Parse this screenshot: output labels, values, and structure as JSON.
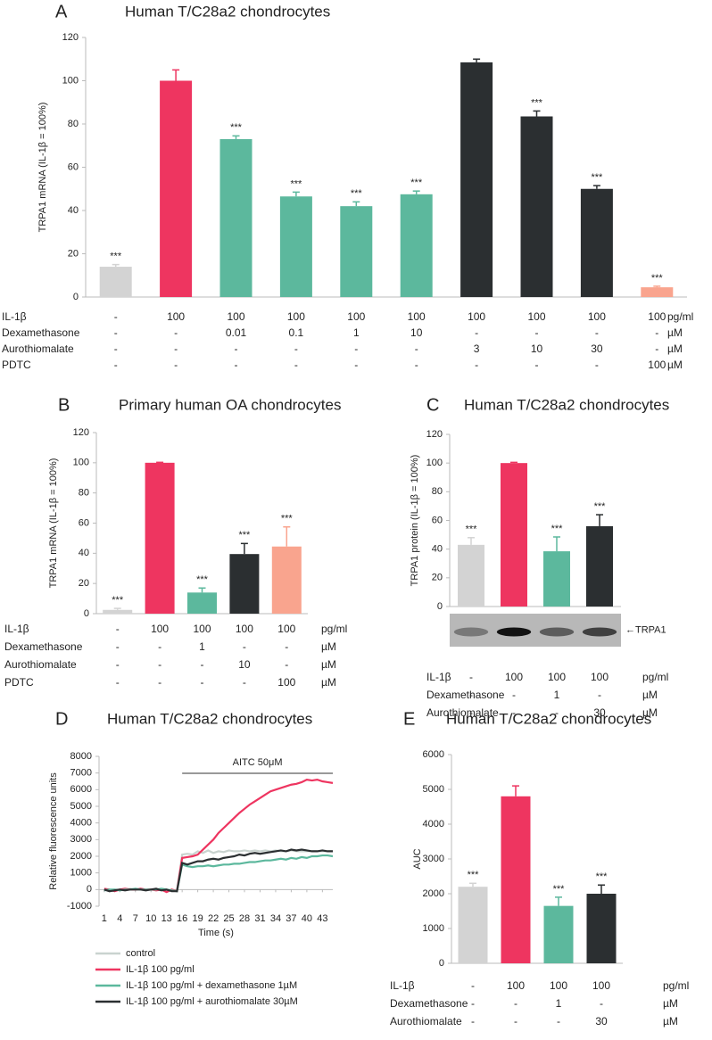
{
  "chart_data": [
    {
      "type": "bar",
      "panel": "A",
      "title": "Human T/C28a2 chondrocytes",
      "ylabel": "TRPA1 mRNA (IL-1β = 100%)",
      "ylim": [
        0,
        120
      ],
      "yticks": [
        0,
        20,
        40,
        60,
        80,
        100,
        120
      ],
      "values": [
        14,
        100,
        73,
        46.5,
        42,
        47.5,
        108.5,
        83.5,
        50,
        4.5
      ],
      "errors": [
        1,
        5,
        1.5,
        2,
        2,
        1.5,
        1.5,
        2.5,
        1.5,
        0.5
      ],
      "colors": [
        "#d3d3d3",
        "#ee3560",
        "#5cb89d",
        "#5cb89d",
        "#5cb89d",
        "#5cb89d",
        "#2b2f31",
        "#2b2f31",
        "#2b2f31",
        "#f9a48e"
      ],
      "significance": [
        "***",
        null,
        "***",
        "***",
        "***",
        "***",
        null,
        "***",
        "***",
        "***"
      ],
      "conditions": [
        {
          "label": "IL-1β",
          "values": [
            "-",
            "100",
            "100",
            "100",
            "100",
            "100",
            "100",
            "100",
            "100",
            "100"
          ],
          "unit": "pg/ml"
        },
        {
          "label": "Dexamethasone",
          "values": [
            "-",
            "-",
            "0.01",
            "0.1",
            "1",
            "10",
            "-",
            "-",
            "-",
            "-"
          ],
          "unit": "µM"
        },
        {
          "label": "Aurothiomalate",
          "values": [
            "-",
            "-",
            "-",
            "-",
            "-",
            "-",
            "3",
            "10",
            "30",
            "-"
          ],
          "unit": "µM"
        },
        {
          "label": "PDTC",
          "values": [
            "-",
            "-",
            "-",
            "-",
            "-",
            "-",
            "-",
            "-",
            "-",
            "100"
          ],
          "unit": "µM"
        }
      ]
    },
    {
      "type": "bar",
      "panel": "B",
      "title": "Primary human OA chondrocytes",
      "ylabel": "TRPA1 mRNA (IL-1β = 100%)",
      "ylim": [
        0,
        120
      ],
      "yticks": [
        0,
        20,
        40,
        60,
        80,
        100,
        120
      ],
      "values": [
        2.5,
        100,
        14,
        39.5,
        44.5
      ],
      "errors": [
        1,
        0.3,
        3,
        7,
        13
      ],
      "colors": [
        "#d3d3d3",
        "#ee3560",
        "#5cb89d",
        "#2b2f31",
        "#f9a48e"
      ],
      "significance": [
        "***",
        null,
        "***",
        "***",
        "***"
      ],
      "conditions": [
        {
          "label": "IL-1β",
          "values": [
            "-",
            "100",
            "100",
            "100",
            "100"
          ],
          "unit": "pg/ml"
        },
        {
          "label": "Dexamethasone",
          "values": [
            "-",
            "-",
            "1",
            "-",
            "-"
          ],
          "unit": "µM"
        },
        {
          "label": "Aurothiomalate",
          "values": [
            "-",
            "-",
            "-",
            "10",
            "-"
          ],
          "unit": "µM"
        },
        {
          "label": "PDTC",
          "values": [
            "-",
            "-",
            "-",
            "-",
            "100"
          ],
          "unit": "µM"
        }
      ]
    },
    {
      "type": "bar",
      "panel": "C",
      "title": "Human T/C28a2 chondrocytes",
      "ylabel": "TRPA1 protein (IL-1β = 100%)",
      "ylim": [
        0,
        120
      ],
      "yticks": [
        0,
        20,
        40,
        60,
        80,
        100,
        120
      ],
      "values": [
        43,
        100,
        38.5,
        56
      ],
      "errors": [
        5,
        0.5,
        10,
        8
      ],
      "colors": [
        "#d3d3d3",
        "#ee3560",
        "#5cb89d",
        "#2b2f31"
      ],
      "significance": [
        "***",
        null,
        "***",
        "***"
      ],
      "blot_label": "←TRPA1",
      "conditions": [
        {
          "label": "IL-1β",
          "values": [
            "-",
            "100",
            "100",
            "100"
          ],
          "unit": "pg/ml"
        },
        {
          "label": "Dexamethasone",
          "values": [
            "-",
            "-",
            "1",
            "-"
          ],
          "unit": "µM"
        },
        {
          "label": "Aurothiomalate",
          "values": [
            "-",
            "-",
            "-",
            "30"
          ],
          "unit": "µM"
        }
      ]
    },
    {
      "type": "line",
      "panel": "D",
      "title": "Human T/C28a2 chondrocytes",
      "ylabel": "Relative fluorescence units",
      "xlabel": "Time (s)",
      "ylim": [
        -1000,
        8000
      ],
      "yticks": [
        -1000,
        0,
        1000,
        2000,
        3000,
        4000,
        5000,
        6000,
        7000,
        8000
      ],
      "xlim": [
        0,
        45
      ],
      "xticks": [
        1,
        4,
        7,
        10,
        13,
        16,
        19,
        22,
        25,
        28,
        31,
        34,
        37,
        40,
        43
      ],
      "annotation": {
        "text": "AITC 50μM",
        "x_start": 16,
        "x_end": 45
      },
      "x": [
        1,
        2,
        3,
        4,
        5,
        6,
        7,
        8,
        9,
        10,
        11,
        12,
        13,
        14,
        15,
        16,
        17,
        18,
        19,
        20,
        21,
        22,
        23,
        24,
        25,
        26,
        27,
        28,
        29,
        30,
        31,
        32,
        33,
        34,
        35,
        36,
        37,
        38,
        39,
        40,
        41,
        42,
        43,
        44,
        45
      ],
      "series": [
        {
          "name": "control",
          "color": "#c9d3cf",
          "values": [
            0,
            -50,
            0,
            0,
            0,
            50,
            0,
            0,
            -50,
            0,
            0,
            0,
            -100,
            0,
            -100,
            2100,
            2150,
            2100,
            2300,
            2200,
            2350,
            2200,
            2300,
            2250,
            2350,
            2300,
            2300,
            2350,
            2300,
            2350,
            2300,
            2350,
            2300,
            2350,
            2300,
            2300,
            2350,
            2300,
            2300,
            2300,
            2300,
            2300,
            2300,
            2300,
            2300
          ]
        },
        {
          "name": "IL-1β 100 pg/ml",
          "color": "#ee3560",
          "values": [
            50,
            0,
            -100,
            0,
            50,
            0,
            0,
            50,
            0,
            0,
            -50,
            0,
            -150,
            0,
            -100,
            1900,
            1950,
            2000,
            2100,
            2400,
            2700,
            3000,
            3400,
            3700,
            4000,
            4300,
            4600,
            4850,
            5100,
            5300,
            5500,
            5700,
            5900,
            6000,
            6100,
            6200,
            6300,
            6350,
            6450,
            6600,
            6550,
            6600,
            6500,
            6450,
            6400
          ]
        },
        {
          "name": "IL-1β 100 pg/ml + dexamethasone 1µM",
          "color": "#5cb89d",
          "values": [
            -50,
            0,
            0,
            -50,
            0,
            0,
            50,
            0,
            0,
            0,
            0,
            50,
            0,
            -50,
            -100,
            1500,
            1400,
            1350,
            1400,
            1400,
            1450,
            1400,
            1450,
            1500,
            1500,
            1550,
            1550,
            1600,
            1650,
            1650,
            1700,
            1750,
            1750,
            1800,
            1850,
            1800,
            1900,
            1850,
            1950,
            1900,
            2000,
            2000,
            2050,
            2050,
            2000
          ]
        },
        {
          "name": "IL-1β 100 pg/ml + aurothiomalate 30µM",
          "color": "#2b2f31",
          "values": [
            0,
            -100,
            -50,
            0,
            -50,
            0,
            0,
            0,
            -50,
            0,
            50,
            -50,
            0,
            -100,
            -100,
            1600,
            1500,
            1600,
            1700,
            1700,
            1800,
            1850,
            1800,
            1900,
            1950,
            2000,
            2100,
            2050,
            2150,
            2200,
            2150,
            2200,
            2250,
            2300,
            2350,
            2300,
            2400,
            2350,
            2400,
            2350,
            2300,
            2300,
            2350,
            2300,
            2300
          ]
        }
      ]
    },
    {
      "type": "bar",
      "panel": "E",
      "title": "Human T/C28a2 chondrocytes",
      "ylabel": "AUC",
      "ylim": [
        0,
        6000
      ],
      "yticks": [
        0,
        1000,
        2000,
        3000,
        4000,
        5000,
        6000
      ],
      "values": [
        2200,
        4800,
        1650,
        2000
      ],
      "errors": [
        100,
        300,
        250,
        250
      ],
      "colors": [
        "#d3d3d3",
        "#ee3560",
        "#5cb89d",
        "#2b2f31"
      ],
      "significance": [
        "***",
        null,
        "***",
        "***"
      ],
      "conditions": [
        {
          "label": "IL-1β",
          "values": [
            "-",
            "100",
            "100",
            "100"
          ],
          "unit": "pg/ml"
        },
        {
          "label": "Dexamethasone",
          "values": [
            "-",
            "-",
            "1",
            "-"
          ],
          "unit": "µM"
        },
        {
          "label": "Aurothiomalate",
          "values": [
            "-",
            "-",
            "-",
            "30"
          ],
          "unit": "µM"
        }
      ]
    }
  ]
}
